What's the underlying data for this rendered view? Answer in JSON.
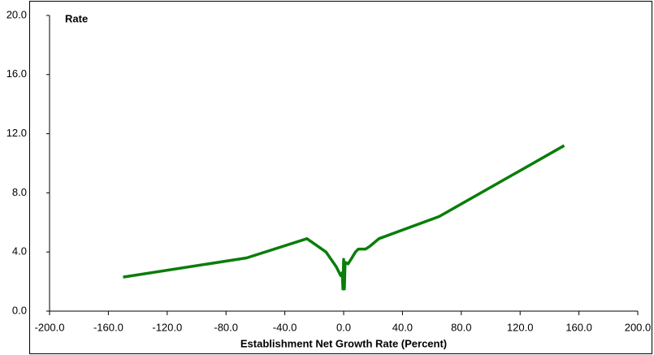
{
  "chart_data": {
    "type": "line",
    "y_label": "Rate",
    "x_label": "Establishment Net Growth Rate (Percent)",
    "x": [
      -150,
      -66,
      -25,
      -12,
      -5,
      -2,
      -1,
      -0.5,
      0,
      0.5,
      1,
      3,
      5,
      8,
      10,
      15,
      18,
      24,
      65,
      150
    ],
    "values": [
      2.3,
      3.6,
      4.9,
      4.0,
      3.0,
      2.4,
      2.6,
      1.5,
      3.5,
      1.5,
      3.3,
      3.2,
      3.5,
      4.0,
      4.2,
      4.2,
      4.4,
      4.9,
      6.4,
      11.2
    ],
    "color": "#0a7d0a",
    "xlim": [
      -200,
      200
    ],
    "ylim": [
      0,
      20
    ],
    "xticks": [
      {
        "value": -200,
        "label": "-200.0"
      },
      {
        "value": -160,
        "label": "-160.0"
      },
      {
        "value": -120,
        "label": "-120.0"
      },
      {
        "value": -80,
        "label": "-80.0"
      },
      {
        "value": -40,
        "label": "-40.0"
      },
      {
        "value": 0,
        "label": "0.0"
      },
      {
        "value": 40,
        "label": "40.0"
      },
      {
        "value": 80,
        "label": "80.0"
      },
      {
        "value": 120,
        "label": "120.0"
      },
      {
        "value": 160,
        "label": "160.0"
      },
      {
        "value": 200,
        "label": "200.0"
      }
    ],
    "yticks": [
      {
        "value": 0,
        "label": "0.0"
      },
      {
        "value": 4,
        "label": "4.0"
      },
      {
        "value": 8,
        "label": "8.0"
      },
      {
        "value": 12,
        "label": "12.0"
      },
      {
        "value": 16,
        "label": "16.0"
      },
      {
        "value": 20,
        "label": "20.0"
      }
    ]
  }
}
